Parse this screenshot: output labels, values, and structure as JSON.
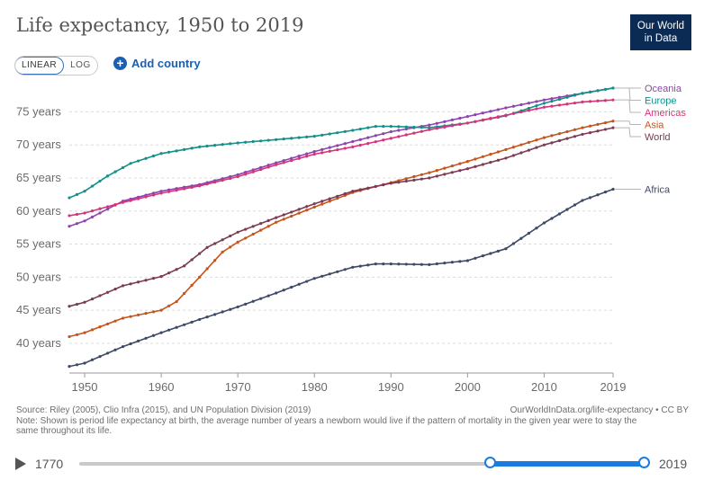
{
  "header": {
    "title": "Life expectancy, 1950 to 2019",
    "logo_line1": "Our World",
    "logo_line2": "in Data"
  },
  "controls": {
    "linear_label": "LINEAR",
    "log_label": "LOG",
    "active_scale": "linear",
    "add_country_label": "Add country"
  },
  "colors": {
    "Oceania": "#8e44ad",
    "Europe": "#13908a",
    "Americas": "#d6337a",
    "Asia": "#c6541b",
    "World": "#7a3b55",
    "Africa": "#3d4a66",
    "timeline_accent": "#1a7be3"
  },
  "chart_data": {
    "type": "line",
    "title": "Life expectancy, 1950 to 2019",
    "xlim": [
      1948,
      2019
    ],
    "ylim": [
      35.5,
      79
    ],
    "y_ticks": [
      40,
      45,
      50,
      55,
      60,
      65,
      70,
      75
    ],
    "y_tick_labels": [
      "40 years",
      "45 years",
      "50 years",
      "55 years",
      "60 years",
      "65 years",
      "70 years",
      "75 years"
    ],
    "x_ticks": [
      1950,
      1960,
      1970,
      1980,
      1990,
      2000,
      2010,
      2019
    ],
    "x_tick_labels": [
      "1950",
      "1960",
      "1970",
      "1980",
      "1990",
      "2000",
      "2010",
      "2019"
    ],
    "grid": "horizontal dashed",
    "series": [
      {
        "name": "Oceania",
        "points": [
          [
            1948,
            57.7
          ],
          [
            1950,
            58.5
          ],
          [
            1955,
            61.5
          ],
          [
            1960,
            63
          ],
          [
            1965,
            64
          ],
          [
            1970,
            65.5
          ],
          [
            1975,
            67.3
          ],
          [
            1980,
            69
          ],
          [
            1985,
            70.5
          ],
          [
            1990,
            72
          ],
          [
            1995,
            73
          ],
          [
            2000,
            74.3
          ],
          [
            2005,
            75.6
          ],
          [
            2010,
            76.8
          ],
          [
            2015,
            77.8
          ],
          [
            2019,
            78.6
          ]
        ]
      },
      {
        "name": "Europe",
        "points": [
          [
            1948,
            62
          ],
          [
            1950,
            63
          ],
          [
            1953,
            65.3
          ],
          [
            1956,
            67.2
          ],
          [
            1960,
            68.7
          ],
          [
            1965,
            69.7
          ],
          [
            1970,
            70.3
          ],
          [
            1975,
            70.8
          ],
          [
            1980,
            71.3
          ],
          [
            1985,
            72.2
          ],
          [
            1988,
            72.8
          ],
          [
            1990,
            72.8
          ],
          [
            1995,
            72.6
          ],
          [
            2000,
            73.3
          ],
          [
            2005,
            74.4
          ],
          [
            2010,
            76.3
          ],
          [
            2015,
            77.8
          ],
          [
            2019,
            78.6
          ]
        ]
      },
      {
        "name": "Americas",
        "points": [
          [
            1948,
            59.3
          ],
          [
            1950,
            59.7
          ],
          [
            1955,
            61.3
          ],
          [
            1960,
            62.7
          ],
          [
            1965,
            63.8
          ],
          [
            1970,
            65.2
          ],
          [
            1975,
            67
          ],
          [
            1980,
            68.6
          ],
          [
            1985,
            69.7
          ],
          [
            1990,
            71
          ],
          [
            1995,
            72.3
          ],
          [
            2000,
            73.3
          ],
          [
            2005,
            74.5
          ],
          [
            2010,
            75.7
          ],
          [
            2015,
            76.5
          ],
          [
            2019,
            76.8
          ]
        ]
      },
      {
        "name": "Asia",
        "points": [
          [
            1948,
            41
          ],
          [
            1950,
            41.6
          ],
          [
            1955,
            43.8
          ],
          [
            1960,
            45
          ],
          [
            1962,
            46.3
          ],
          [
            1965,
            50
          ],
          [
            1968,
            53.8
          ],
          [
            1970,
            55.3
          ],
          [
            1975,
            58.3
          ],
          [
            1980,
            60.6
          ],
          [
            1985,
            62.8
          ],
          [
            1990,
            64.3
          ],
          [
            1995,
            65.8
          ],
          [
            2000,
            67.5
          ],
          [
            2005,
            69.3
          ],
          [
            2010,
            71.1
          ],
          [
            2015,
            72.6
          ],
          [
            2019,
            73.6
          ]
        ]
      },
      {
        "name": "World",
        "points": [
          [
            1948,
            45.6
          ],
          [
            1950,
            46.2
          ],
          [
            1955,
            48.7
          ],
          [
            1960,
            50.1
          ],
          [
            1963,
            51.7
          ],
          [
            1966,
            54.5
          ],
          [
            1970,
            56.8
          ],
          [
            1975,
            59
          ],
          [
            1980,
            61.1
          ],
          [
            1985,
            63
          ],
          [
            1990,
            64.2
          ],
          [
            1995,
            65
          ],
          [
            2000,
            66.4
          ],
          [
            2005,
            68
          ],
          [
            2010,
            70
          ],
          [
            2015,
            71.6
          ],
          [
            2019,
            72.6
          ]
        ]
      },
      {
        "name": "Africa",
        "points": [
          [
            1948,
            36.5
          ],
          [
            1950,
            37
          ],
          [
            1955,
            39.5
          ],
          [
            1960,
            41.6
          ],
          [
            1965,
            43.6
          ],
          [
            1970,
            45.5
          ],
          [
            1975,
            47.6
          ],
          [
            1980,
            49.8
          ],
          [
            1985,
            51.5
          ],
          [
            1988,
            52
          ],
          [
            1990,
            52
          ],
          [
            1995,
            51.9
          ],
          [
            2000,
            52.5
          ],
          [
            2005,
            54.3
          ],
          [
            2010,
            58.2
          ],
          [
            2015,
            61.6
          ],
          [
            2019,
            63.3
          ]
        ]
      }
    ],
    "legend_position": "right, labels at line ends"
  },
  "footer": {
    "source": "Source: Riley (2005), Clio Infra (2015), and UN Population Division (2019)",
    "note": "Note: Shown is period life expectancy at birth, the average number of years a newborn would live if the pattern of mortality in the given year were to stay the same throughout its life.",
    "url": "OurWorldInData.org/life-expectancy • CC BY"
  },
  "timeline": {
    "start_label": "1770",
    "end_label": "2019",
    "selected_start_fraction": 0.727,
    "selected_end_fraction": 1.0
  }
}
